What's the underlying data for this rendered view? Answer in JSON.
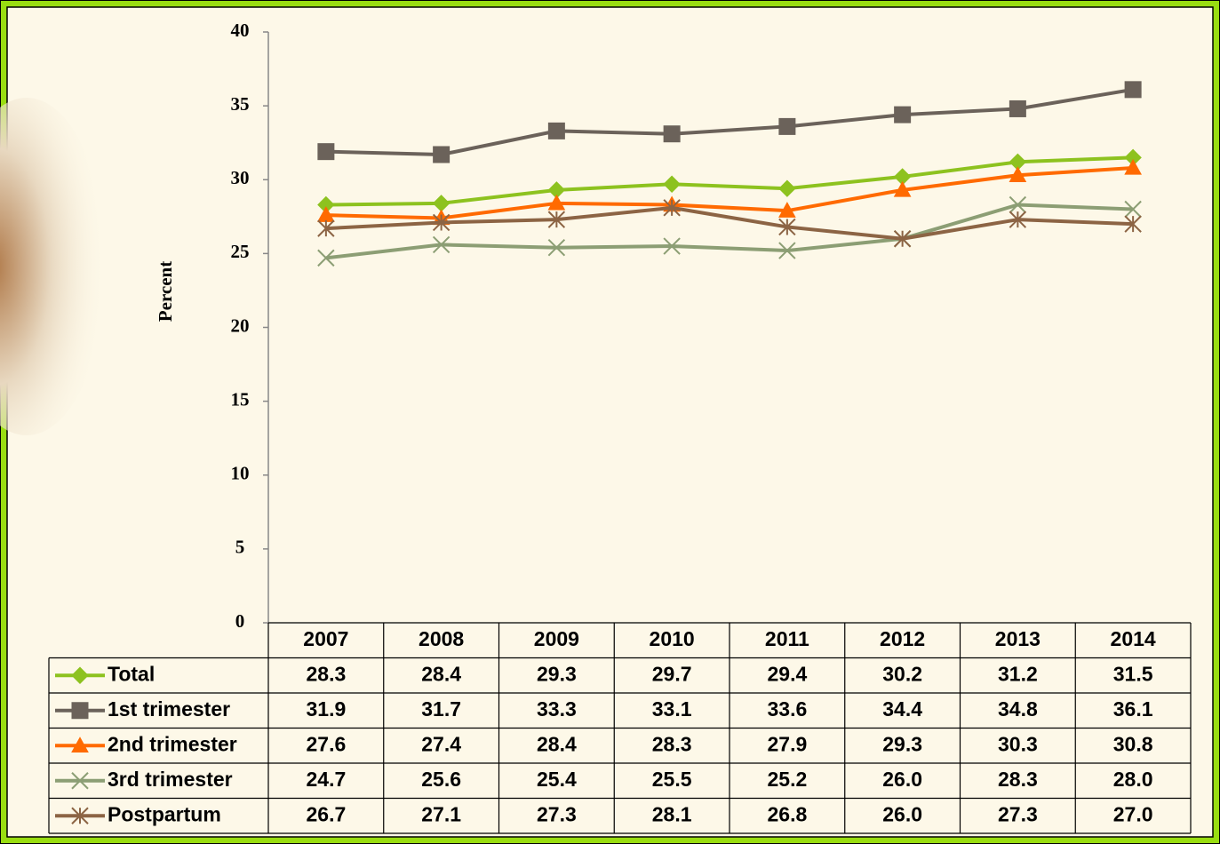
{
  "chart_data": {
    "type": "line",
    "y_label": "Percent",
    "categories": [
      "2007",
      "2008",
      "2009",
      "2010",
      "2011",
      "2012",
      "2013",
      "2014"
    ],
    "ylim": [
      0,
      40
    ],
    "yticks": [
      0,
      5,
      10,
      15,
      20,
      25,
      30,
      35,
      40
    ],
    "series": [
      {
        "name": "Total",
        "color": "#8dc21f",
        "marker": "diamond",
        "values": [
          28.3,
          28.4,
          29.3,
          29.7,
          29.4,
          30.2,
          31.2,
          31.5
        ],
        "value_labels": [
          "28.3",
          "28.4",
          "29.3",
          "29.7",
          "29.4",
          "30.2",
          "31.2",
          "31.5"
        ]
      },
      {
        "name": "1st trimester",
        "color": "#6b625a",
        "marker": "square",
        "values": [
          31.9,
          31.7,
          33.3,
          33.1,
          33.6,
          34.4,
          34.8,
          36.1
        ],
        "value_labels": [
          "31.9",
          "31.7",
          "33.3",
          "33.1",
          "33.6",
          "34.4",
          "34.8",
          "36.1"
        ]
      },
      {
        "name": "2nd trimester",
        "color": "#ff6a00",
        "marker": "triangle",
        "values": [
          27.6,
          27.4,
          28.4,
          28.3,
          27.9,
          29.3,
          30.3,
          30.8
        ],
        "value_labels": [
          "27.6",
          "27.4",
          "28.4",
          "28.3",
          "27.9",
          "29.3",
          "30.3",
          "30.8"
        ]
      },
      {
        "name": "3rd trimester",
        "color": "#8c9e74",
        "marker": "x",
        "values": [
          24.7,
          25.6,
          25.4,
          25.5,
          25.2,
          26,
          28.3,
          28
        ],
        "value_labels": [
          "24.7",
          "25.6",
          "25.4",
          "25.5",
          "25.2",
          "26.0",
          "28.3",
          "28.0"
        ]
      },
      {
        "name": "Postpartum",
        "color": "#8c6444",
        "marker": "star",
        "values": [
          26.7,
          27.1,
          27.3,
          28.1,
          26.8,
          26,
          27.3,
          27
        ],
        "value_labels": [
          "26.7",
          "27.1",
          "27.3",
          "28.1",
          "26.8",
          "26.0",
          "27.3",
          "27.0"
        ]
      }
    ]
  }
}
